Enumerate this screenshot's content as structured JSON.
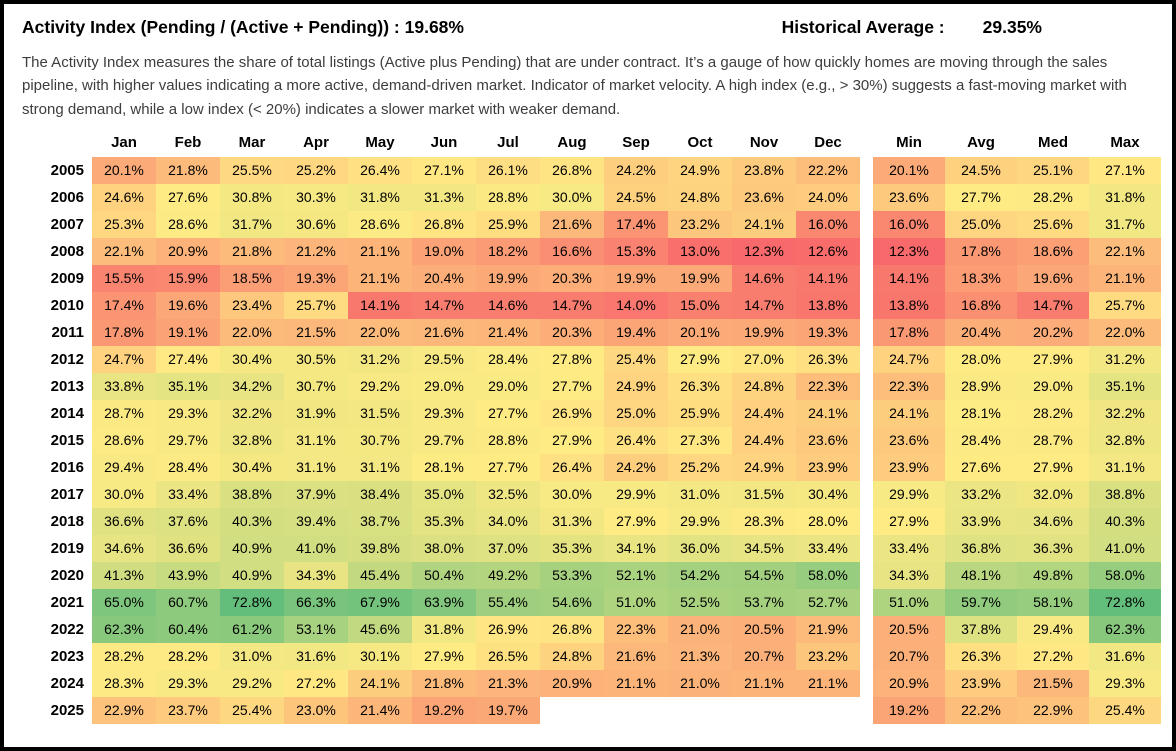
{
  "header": {
    "title": "Activity Index (Pending / (Active + Pending)) : 19.68%",
    "historical_average_label": "Historical Average :",
    "historical_average_value": "29.35%"
  },
  "description": "The Activity Index measures the share of total listings (Active plus Pending) that are under contract. It’s a gauge of how quickly homes are moving through the sales pipeline, with higher values indicating a more active, demand-driven market. Indicator of market velocity. A high index (e.g., > 30%) suggests a fast-moving market with strong demand, while a low index (< 20%) indicates a slower market with weaker demand.",
  "chart_data": {
    "type": "heatmap",
    "title": "Activity Index (Pending / (Active + Pending))",
    "current_value_pct": 19.68,
    "historical_average_pct": 29.35,
    "unit": "%",
    "value_format": "one_decimal_percent",
    "columns": [
      "Jan",
      "Feb",
      "Mar",
      "Apr",
      "May",
      "Jun",
      "Jul",
      "Aug",
      "Sep",
      "Oct",
      "Nov",
      "Dec"
    ],
    "summary_columns": [
      "Min",
      "Avg",
      "Med",
      "Max"
    ],
    "colorscale": {
      "type": "3-color",
      "min_color": "#F8696B",
      "mid_color": "#FFEB84",
      "max_color": "#63BE7B",
      "midpoint": "50th percentile",
      "data_min": 12.3,
      "data_max": 72.8
    },
    "rows": [
      {
        "year": "2005",
        "monthly": [
          20.1,
          21.8,
          25.5,
          25.2,
          26.4,
          27.1,
          26.1,
          26.8,
          24.2,
          24.9,
          23.8,
          22.2
        ],
        "summary": [
          20.1,
          24.5,
          25.1,
          27.1
        ]
      },
      {
        "year": "2006",
        "monthly": [
          24.6,
          27.6,
          30.8,
          30.3,
          31.8,
          31.3,
          28.8,
          30.0,
          24.5,
          24.8,
          23.6,
          24.0
        ],
        "summary": [
          23.6,
          27.7,
          28.2,
          31.8
        ]
      },
      {
        "year": "2007",
        "monthly": [
          25.3,
          28.6,
          31.7,
          30.6,
          28.6,
          26.8,
          25.9,
          21.6,
          17.4,
          23.2,
          24.1,
          16.0
        ],
        "summary": [
          16.0,
          25.0,
          25.6,
          31.7
        ]
      },
      {
        "year": "2008",
        "monthly": [
          22.1,
          20.9,
          21.8,
          21.2,
          21.1,
          19.0,
          18.2,
          16.6,
          15.3,
          13.0,
          12.3,
          12.6
        ],
        "summary": [
          12.3,
          17.8,
          18.6,
          22.1
        ]
      },
      {
        "year": "2009",
        "monthly": [
          15.5,
          15.9,
          18.5,
          19.3,
          21.1,
          20.4,
          19.9,
          20.3,
          19.9,
          19.9,
          14.6,
          14.1
        ],
        "summary": [
          14.1,
          18.3,
          19.6,
          21.1
        ]
      },
      {
        "year": "2010",
        "monthly": [
          17.4,
          19.6,
          23.4,
          25.7,
          14.1,
          14.7,
          14.6,
          14.7,
          14.0,
          15.0,
          14.7,
          13.8
        ],
        "summary": [
          13.8,
          16.8,
          14.7,
          25.7
        ]
      },
      {
        "year": "2011",
        "monthly": [
          17.8,
          19.1,
          22.0,
          21.5,
          22.0,
          21.6,
          21.4,
          20.3,
          19.4,
          20.1,
          19.9,
          19.3
        ],
        "summary": [
          17.8,
          20.4,
          20.2,
          22.0
        ]
      },
      {
        "year": "2012",
        "monthly": [
          24.7,
          27.4,
          30.4,
          30.5,
          31.2,
          29.5,
          28.4,
          27.8,
          25.4,
          27.9,
          27.0,
          26.3
        ],
        "summary": [
          24.7,
          28.0,
          27.9,
          31.2
        ]
      },
      {
        "year": "2013",
        "monthly": [
          33.8,
          35.1,
          34.2,
          30.7,
          29.2,
          29.0,
          29.0,
          27.7,
          24.9,
          26.3,
          24.8,
          22.3
        ],
        "summary": [
          22.3,
          28.9,
          29.0,
          35.1
        ]
      },
      {
        "year": "2014",
        "monthly": [
          28.7,
          29.3,
          32.2,
          31.9,
          31.5,
          29.3,
          27.7,
          26.9,
          25.0,
          25.9,
          24.4,
          24.1
        ],
        "summary": [
          24.1,
          28.1,
          28.2,
          32.2
        ]
      },
      {
        "year": "2015",
        "monthly": [
          28.6,
          29.7,
          32.8,
          31.1,
          30.7,
          29.7,
          28.8,
          27.9,
          26.4,
          27.3,
          24.4,
          23.6
        ],
        "summary": [
          23.6,
          28.4,
          28.7,
          32.8
        ]
      },
      {
        "year": "2016",
        "monthly": [
          29.4,
          28.4,
          30.4,
          31.1,
          31.1,
          28.1,
          27.7,
          26.4,
          24.2,
          25.2,
          24.9,
          23.9
        ],
        "summary": [
          23.9,
          27.6,
          27.9,
          31.1
        ]
      },
      {
        "year": "2017",
        "monthly": [
          30.0,
          33.4,
          38.8,
          37.9,
          38.4,
          35.0,
          32.5,
          30.0,
          29.9,
          31.0,
          31.5,
          30.4
        ],
        "summary": [
          29.9,
          33.2,
          32.0,
          38.8
        ]
      },
      {
        "year": "2018",
        "monthly": [
          36.6,
          37.6,
          40.3,
          39.4,
          38.7,
          35.3,
          34.0,
          31.3,
          27.9,
          29.9,
          28.3,
          28.0
        ],
        "summary": [
          27.9,
          33.9,
          34.6,
          40.3
        ]
      },
      {
        "year": "2019",
        "monthly": [
          34.6,
          36.6,
          40.9,
          41.0,
          39.8,
          38.0,
          37.0,
          35.3,
          34.1,
          36.0,
          34.5,
          33.4
        ],
        "summary": [
          33.4,
          36.8,
          36.3,
          41.0
        ]
      },
      {
        "year": "2020",
        "monthly": [
          41.3,
          43.9,
          40.9,
          34.3,
          45.4,
          50.4,
          49.2,
          53.3,
          52.1,
          54.2,
          54.5,
          58.0
        ],
        "summary": [
          34.3,
          48.1,
          49.8,
          58.0
        ]
      },
      {
        "year": "2021",
        "monthly": [
          65.0,
          60.7,
          72.8,
          66.3,
          67.9,
          63.9,
          55.4,
          54.6,
          51.0,
          52.5,
          53.7,
          52.7
        ],
        "summary": [
          51.0,
          59.7,
          58.1,
          72.8
        ]
      },
      {
        "year": "2022",
        "monthly": [
          62.3,
          60.4,
          61.2,
          53.1,
          45.6,
          31.8,
          26.9,
          26.8,
          22.3,
          21.0,
          20.5,
          21.9
        ],
        "summary": [
          20.5,
          37.8,
          29.4,
          62.3
        ]
      },
      {
        "year": "2023",
        "monthly": [
          28.2,
          28.2,
          31.0,
          31.6,
          30.1,
          27.9,
          26.5,
          24.8,
          21.6,
          21.3,
          20.7,
          23.2
        ],
        "summary": [
          20.7,
          26.3,
          27.2,
          31.6
        ]
      },
      {
        "year": "2024",
        "monthly": [
          28.3,
          29.3,
          29.2,
          27.2,
          24.1,
          21.8,
          21.3,
          20.9,
          21.1,
          21.0,
          21.1,
          21.1
        ],
        "summary": [
          20.9,
          23.9,
          21.5,
          29.3
        ]
      },
      {
        "year": "2025",
        "monthly": [
          22.9,
          23.7,
          25.4,
          23.0,
          21.4,
          19.2,
          19.7,
          null,
          null,
          null,
          null,
          null
        ],
        "summary": [
          19.2,
          22.2,
          22.9,
          25.4
        ]
      }
    ]
  }
}
